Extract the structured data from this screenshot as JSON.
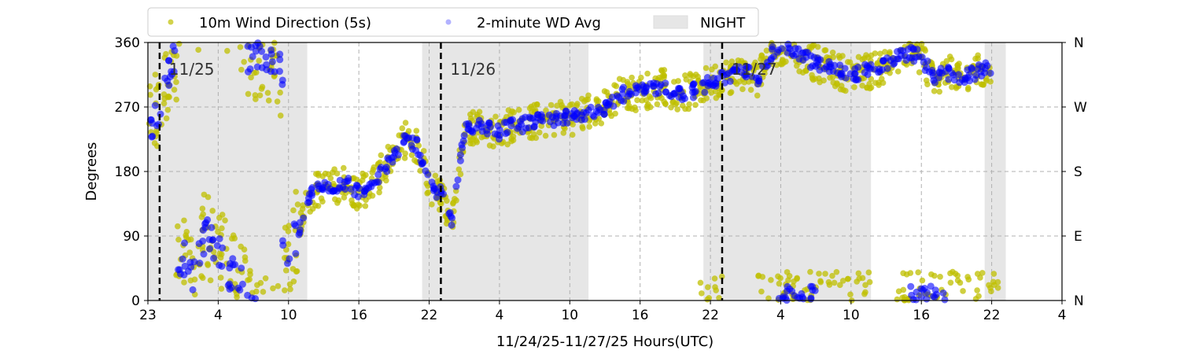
{
  "chart_data": {
    "type": "scatter",
    "xlabel": "11/24/25-11/27/25  Hours(UTC)",
    "ylabel": "Degrees",
    "x_units": "hours since 11/24 23:00 UTC",
    "xlim": [
      0,
      78
    ],
    "ylim": [
      0,
      360
    ],
    "xticks": [
      0,
      6,
      12,
      18,
      24,
      30,
      36,
      42,
      48,
      54,
      60,
      66,
      72,
      78
    ],
    "xtick_labels": [
      "23",
      "4",
      "10",
      "16",
      "22",
      "4",
      "10",
      "16",
      "22",
      "4",
      "10",
      "16",
      "22",
      "4"
    ],
    "yticks": [
      0,
      90,
      180,
      270,
      360
    ],
    "ytick_labels": [
      "0",
      "90",
      "180",
      "270",
      "360"
    ],
    "right_tick_labels": [
      "N",
      "E",
      "S",
      "W",
      "N"
    ],
    "grid": true,
    "legend_placement": "top-center, above plot",
    "legend": [
      "10m Wind Direction (5s)",
      "2-minute WD Avg",
      "NIGHT"
    ],
    "day_markers": [
      {
        "x": 1,
        "label": "11/25"
      },
      {
        "x": 25,
        "label": "11/26"
      },
      {
        "x": 49,
        "label": "11/27"
      }
    ],
    "night_spans": [
      [
        0,
        13.6
      ],
      [
        23.4,
        37.6
      ],
      [
        47.4,
        61.7
      ],
      [
        71.4,
        73.2
      ]
    ],
    "colors": {
      "wd5s": "#bfbf00",
      "avg": "#0000ff",
      "night": "#e6e6e6"
    },
    "series": [
      {
        "name": "10m Wind Direction (5s)",
        "spread": 25,
        "trend_hourly": [
          250,
          255,
          340,
          60,
          30,
          100,
          70,
          40,
          20,
          340,
          330,
          320,
          60,
          110,
          150,
          160,
          160,
          165,
          150,
          160,
          180,
          200,
          225,
          215,
          160,
          150,
          110,
          240,
          245,
          240,
          235,
          245,
          245,
          250,
          250,
          255,
          255,
          260,
          265,
          270,
          285,
          290,
          290,
          295,
          300,
          290,
          290,
          295,
          305,
          310,
          315,
          320,
          310,
          340,
          355,
          350,
          340,
          330,
          325,
          320,
          315,
          320,
          320,
          330,
          340,
          345,
          340,
          310,
          320,
          310,
          315,
          320,
          325
        ],
        "wrapped_low_hours": [
          47,
          48,
          52,
          53,
          54,
          55,
          56,
          57,
          58,
          59,
          60,
          61,
          64,
          65,
          66,
          67,
          68,
          69,
          70,
          71,
          72
        ]
      },
      {
        "name": "2-minute WD Avg",
        "spread": 10,
        "trend_hourly": [
          250,
          255,
          340,
          60,
          30,
          100,
          70,
          40,
          20,
          340,
          330,
          320,
          60,
          110,
          150,
          160,
          160,
          165,
          150,
          160,
          180,
          200,
          225,
          215,
          160,
          150,
          110,
          240,
          245,
          240,
          235,
          245,
          245,
          250,
          250,
          255,
          255,
          260,
          265,
          270,
          285,
          290,
          290,
          295,
          300,
          290,
          290,
          295,
          305,
          310,
          315,
          320,
          310,
          340,
          355,
          350,
          340,
          330,
          325,
          320,
          315,
          320,
          320,
          330,
          340,
          345,
          340,
          310,
          320,
          310,
          315,
          320,
          325
        ],
        "wrapped_low_hours": [
          54,
          55,
          56,
          65,
          66,
          67
        ]
      }
    ]
  }
}
